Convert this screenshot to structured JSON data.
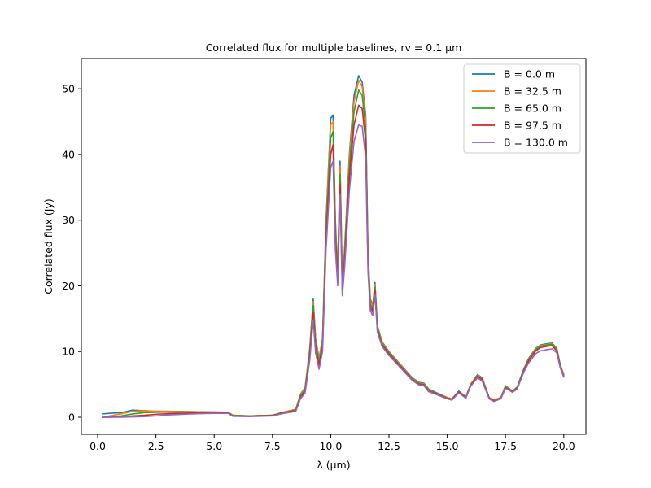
{
  "chart_data": {
    "type": "line",
    "title": "Correlated flux for multiple baselines, rv = 0.1 μm",
    "xlabel": "λ (μm)",
    "ylabel": "Correlated flux (Jy)",
    "xlim": [
      -0.7,
      20.95
    ],
    "ylim": [
      -2.6,
      54.6
    ],
    "xticks": [
      0.0,
      2.5,
      5.0,
      7.5,
      10.0,
      12.5,
      15.0,
      17.5,
      20.0
    ],
    "xtick_labels": [
      "0.0",
      "2.5",
      "5.0",
      "7.5",
      "10.0",
      "12.5",
      "15.0",
      "17.5",
      "20.0"
    ],
    "yticks": [
      0,
      10,
      20,
      30,
      40,
      50
    ],
    "ytick_labels": [
      "0",
      "10",
      "20",
      "30",
      "40",
      "50"
    ],
    "grid": false,
    "legend_position": "top-right",
    "x": [
      0.2,
      0.5,
      1.0,
      1.5,
      2.0,
      2.5,
      3.0,
      4.0,
      5.0,
      5.6,
      5.8,
      6.5,
      7.5,
      8.0,
      8.5,
      8.7,
      8.9,
      9.1,
      9.25,
      9.35,
      9.5,
      9.65,
      9.8,
      10.0,
      10.1,
      10.2,
      10.3,
      10.4,
      10.5,
      10.6,
      10.8,
      11.0,
      11.2,
      11.35,
      11.5,
      11.6,
      11.7,
      11.8,
      11.9,
      12.0,
      12.2,
      12.5,
      13.0,
      13.5,
      13.8,
      14.0,
      14.2,
      14.5,
      15.0,
      15.2,
      15.5,
      15.8,
      16.0,
      16.3,
      16.5,
      16.8,
      17.0,
      17.3,
      17.5,
      17.8,
      18.0,
      18.3,
      18.5,
      18.8,
      19.0,
      19.3,
      19.5,
      19.7,
      19.85,
      20.0
    ],
    "series": [
      {
        "name": "B = 0.0 m",
        "color": "#1f77b4",
        "values": [
          0.5,
          0.6,
          0.7,
          1.1,
          1.0,
          0.9,
          0.9,
          0.85,
          0.8,
          0.75,
          0.3,
          0.2,
          0.3,
          0.8,
          1.2,
          3.5,
          4.5,
          10.5,
          18.0,
          12.0,
          9.0,
          12.0,
          30.0,
          45.5,
          46.0,
          30.0,
          22.0,
          39.0,
          20.0,
          26.0,
          40.0,
          49.0,
          52.0,
          51.0,
          46.0,
          25.0,
          18.0,
          17.0,
          20.5,
          14.0,
          11.5,
          10.0,
          8.0,
          6.0,
          5.3,
          5.2,
          4.3,
          3.8,
          3.0,
          2.8,
          4.0,
          3.1,
          5.0,
          6.5,
          6.0,
          3.0,
          2.6,
          3.0,
          4.8,
          4.0,
          4.6,
          7.5,
          9.0,
          10.5,
          11.0,
          11.2,
          11.3,
          10.5,
          8.0,
          6.5
        ]
      },
      {
        "name": "B = 32.5 m",
        "color": "#ff7f0e",
        "values": [
          0.0,
          0.2,
          0.5,
          0.9,
          1.0,
          0.9,
          0.9,
          0.85,
          0.8,
          0.75,
          0.3,
          0.2,
          0.3,
          0.8,
          1.2,
          3.4,
          4.4,
          10.3,
          17.6,
          11.8,
          8.8,
          11.8,
          29.5,
          44.5,
          45.0,
          29.5,
          21.6,
          38.2,
          19.6,
          25.5,
          39.3,
          48.0,
          51.3,
          50.3,
          45.3,
          24.6,
          17.7,
          16.8,
          20.2,
          13.8,
          11.4,
          9.9,
          7.9,
          5.9,
          5.2,
          5.1,
          4.2,
          3.7,
          3.0,
          2.8,
          3.9,
          3.1,
          5.0,
          6.4,
          5.9,
          3.0,
          2.6,
          3.0,
          4.7,
          4.0,
          4.5,
          7.4,
          8.9,
          10.4,
          10.9,
          11.1,
          11.2,
          10.4,
          7.9,
          6.4
        ]
      },
      {
        "name": "B = 65.0 m",
        "color": "#2ca02c",
        "values": [
          0.0,
          0.05,
          0.2,
          0.5,
          0.7,
          0.75,
          0.8,
          0.8,
          0.75,
          0.7,
          0.25,
          0.2,
          0.3,
          0.75,
          1.1,
          3.2,
          4.2,
          9.8,
          17.0,
          11.2,
          8.4,
          11.3,
          28.5,
          42.5,
          43.5,
          28.5,
          21.0,
          37.0,
          19.2,
          24.8,
          38.0,
          46.5,
          49.8,
          49.0,
          44.0,
          24.0,
          17.2,
          16.4,
          19.8,
          13.6,
          11.2,
          9.8,
          7.8,
          5.8,
          5.1,
          5.0,
          4.1,
          3.7,
          2.9,
          2.7,
          3.9,
          3.0,
          4.9,
          6.3,
          5.8,
          2.9,
          2.5,
          2.9,
          4.6,
          3.9,
          4.5,
          7.3,
          8.8,
          10.3,
          10.8,
          11.0,
          11.1,
          10.3,
          7.8,
          6.3
        ]
      },
      {
        "name": "B = 97.5 m",
        "color": "#d62728",
        "values": [
          0.0,
          0.0,
          0.05,
          0.2,
          0.3,
          0.45,
          0.55,
          0.65,
          0.7,
          0.65,
          0.2,
          0.15,
          0.25,
          0.7,
          1.0,
          3.0,
          4.0,
          9.3,
          16.0,
          10.6,
          7.9,
          10.7,
          27.0,
          40.0,
          41.5,
          27.0,
          20.5,
          35.5,
          18.8,
          24.0,
          36.5,
          44.5,
          47.5,
          47.0,
          42.0,
          23.0,
          16.7,
          16.0,
          19.3,
          13.3,
          11.0,
          9.6,
          7.7,
          5.7,
          5.0,
          4.9,
          4.0,
          3.6,
          2.9,
          2.7,
          3.8,
          3.0,
          4.8,
          6.2,
          5.7,
          2.9,
          2.5,
          2.9,
          4.5,
          3.9,
          4.4,
          7.2,
          8.6,
          10.1,
          10.6,
          10.8,
          10.9,
          10.1,
          7.7,
          6.2
        ]
      },
      {
        "name": "B = 130.0 m",
        "color": "#9467bd",
        "values": [
          0.0,
          0.0,
          0.0,
          0.05,
          0.1,
          0.2,
          0.35,
          0.5,
          0.6,
          0.6,
          0.15,
          0.1,
          0.2,
          0.6,
          0.9,
          2.8,
          3.7,
          8.7,
          14.8,
          9.8,
          7.3,
          10.0,
          25.5,
          38.0,
          39.0,
          25.5,
          20.0,
          34.0,
          18.5,
          23.0,
          34.5,
          42.0,
          44.5,
          44.3,
          39.5,
          22.0,
          16.2,
          15.5,
          18.7,
          13.0,
          10.8,
          9.4,
          7.5,
          5.6,
          4.9,
          4.8,
          3.9,
          3.5,
          2.8,
          2.6,
          3.7,
          2.9,
          4.7,
          6.0,
          5.5,
          2.8,
          2.4,
          2.8,
          4.4,
          3.8,
          4.3,
          7.0,
          8.3,
          9.7,
          10.1,
          10.3,
          10.4,
          9.8,
          7.5,
          6.1
        ]
      }
    ]
  }
}
